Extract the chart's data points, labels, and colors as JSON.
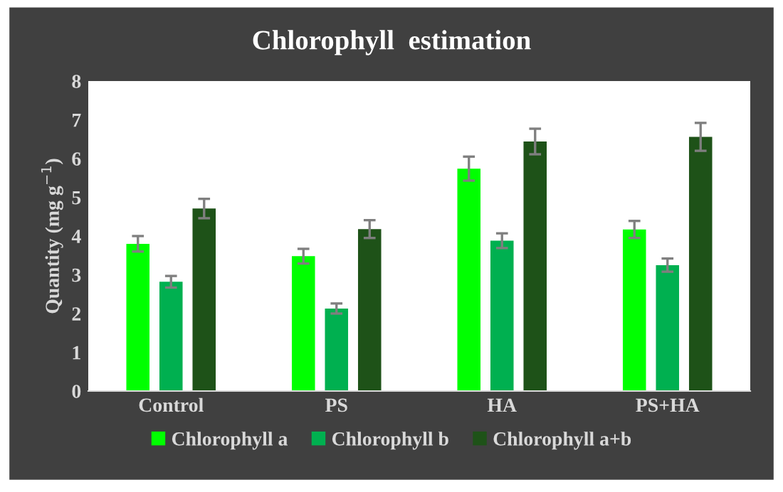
{
  "chart_data": {
    "type": "bar",
    "title": "Chlorophyll  estimation",
    "ylabel": "Quantity (mg g$^{−1}$)",
    "categories": [
      "Control",
      "PS",
      "HA",
      "PS+HA"
    ],
    "series": [
      {
        "name": "Chlorophyll a",
        "color": "#00ff00",
        "values": [
          3.8,
          3.48,
          5.74,
          4.17
        ],
        "errors": [
          0.2,
          0.19,
          0.31,
          0.22
        ]
      },
      {
        "name": "Chlorophyll b",
        "color": "#00b050",
        "values": [
          2.82,
          2.13,
          3.88,
          3.25
        ],
        "errors": [
          0.15,
          0.13,
          0.19,
          0.17
        ]
      },
      {
        "name": "Chlorophyll a+b",
        "color": "#1e5218",
        "values": [
          4.71,
          4.18,
          6.44,
          6.56
        ],
        "errors": [
          0.25,
          0.23,
          0.33,
          0.36
        ]
      }
    ],
    "ylim": [
      0,
      8
    ],
    "yticks": [
      0,
      1,
      2,
      3,
      4,
      5,
      6,
      7,
      8
    ],
    "grid": false,
    "legend": "bottom"
  }
}
